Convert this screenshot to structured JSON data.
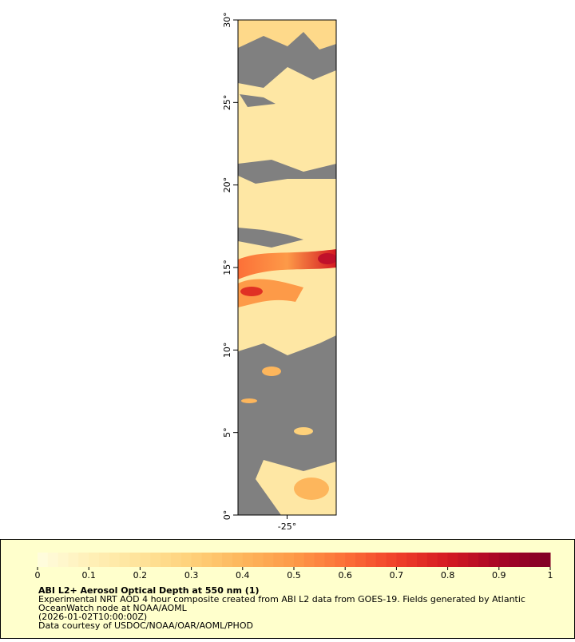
{
  "map": {
    "ylim": [
      0,
      30
    ],
    "xlim": [
      -26.5,
      -23.5
    ],
    "yticks": [
      {
        "value": 0,
        "label": "0°"
      },
      {
        "value": 5,
        "label": "5°"
      },
      {
        "value": 10,
        "label": "10°"
      },
      {
        "value": 15,
        "label": "15°"
      },
      {
        "value": 20,
        "label": "20°"
      },
      {
        "value": 25,
        "label": "25°"
      },
      {
        "value": 30,
        "label": "30°"
      }
    ],
    "xticks": [
      {
        "value": -25,
        "label": "-25°"
      }
    ]
  },
  "colorbar": {
    "lim": [
      0,
      1
    ],
    "ticks": [
      0,
      0.1,
      0.2,
      0.3,
      0.4,
      0.5,
      0.6,
      0.7,
      0.8,
      0.9,
      1
    ],
    "colormap": [
      "#fffde0",
      "#fff0b8",
      "#fee39a",
      "#fed17a",
      "#fdb65c",
      "#fd9a48",
      "#fc7038",
      "#f0402a",
      "#d41a22",
      "#a80526",
      "#800026"
    ]
  },
  "caption": {
    "title": "ABI L2+ Aerosol Optical Depth at 550 nm (1)",
    "lines": [
      "Experimental NRT AOD 4 hour composite created from ABI L2 data from GOES-19. Fields generated by Atlantic",
      "OceanWatch node at NOAA/AOML",
      "(2026-01-02T10:00:00Z)",
      "Data courtesy of USDOC/NOAA/OAR/AOML/PHOD"
    ]
  }
}
